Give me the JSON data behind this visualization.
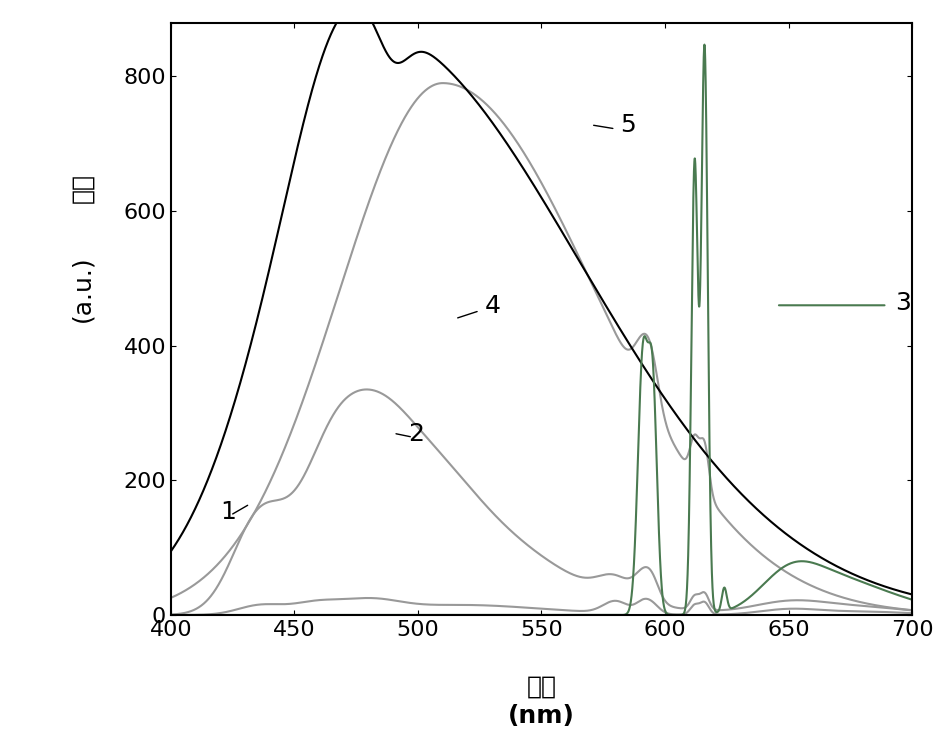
{
  "xlabel_chinese": "波长",
  "xlabel_nm": "(nm)",
  "ylabel_line1": "强度",
  "ylabel_line2": "(a.u.)",
  "xlim": [
    400,
    700
  ],
  "ylim": [
    0,
    880
  ],
  "yticks": [
    0,
    200,
    400,
    600,
    800
  ],
  "xticks": [
    400,
    450,
    500,
    550,
    600,
    650,
    700
  ],
  "bg_color": "#ffffff",
  "curve_color_1": "#999999",
  "curve_color_2": "#999999",
  "curve_color_3": "#4a7a50",
  "curve_color_4": "#000000",
  "curve_color_5": "#999999",
  "label_color": "#000000",
  "label_fontsize": 18,
  "axis_fontsize": 18,
  "tick_fontsize": 16,
  "linewidth": 1.5
}
